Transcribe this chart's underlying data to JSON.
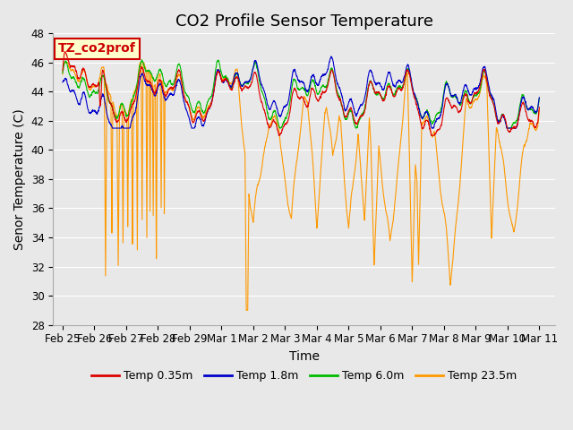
{
  "title": "CO2 Profile Sensor Temperature",
  "ylabel": "Senor Temperature (C)",
  "xlabel": "Time",
  "annotation_text": "TZ_co2prof",
  "annotation_bg": "#ffffcc",
  "annotation_border": "#cc0000",
  "ylim": [
    28,
    48
  ],
  "yticks": [
    28,
    30,
    32,
    34,
    36,
    38,
    40,
    42,
    44,
    46,
    48
  ],
  "xtick_labels": [
    "Feb 25",
    "Feb 26",
    "Feb 27",
    "Feb 28",
    "Feb 29",
    "Mar 1",
    "Mar 2",
    "Mar 3",
    "Mar 4",
    "Mar 5",
    "Mar 6",
    "Mar 7",
    "Mar 8",
    "Mar 9",
    "Mar 10",
    "Mar 11"
  ],
  "xtick_positions": [
    0,
    1,
    2,
    3,
    4,
    5,
    6,
    7,
    8,
    9,
    10,
    11,
    12,
    13,
    14,
    15
  ],
  "colors": {
    "red": "#dd0000",
    "blue": "#0000cc",
    "green": "#00bb00",
    "orange": "#ff9900"
  },
  "legend_labels": [
    "Temp 0.35m",
    "Temp 1.8m",
    "Temp 6.0m",
    "Temp 23.5m"
  ],
  "bg_color": "#e8e8e8",
  "grid_color": "#ffffff",
  "title_fontsize": 13,
  "label_fontsize": 10,
  "tick_fontsize": 8.5
}
